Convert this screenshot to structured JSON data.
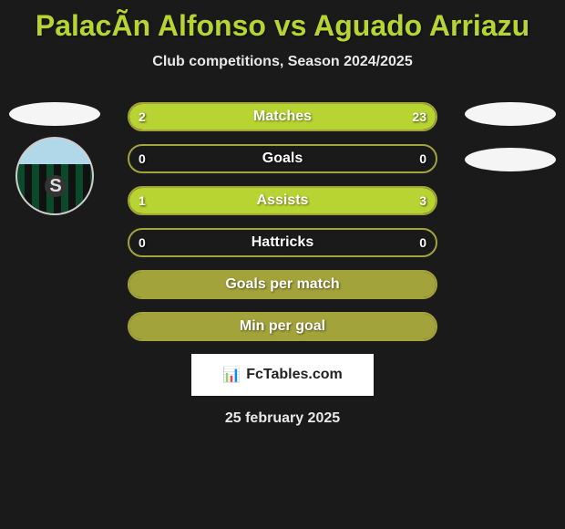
{
  "title": "PalacÃ­n Alfonso vs Aguado Arriazu",
  "subtitle": "Club competitions, Season 2024/2025",
  "colors": {
    "accent": "#b8d432",
    "accent_dark": "#a3a33b",
    "background": "#1a1a1a",
    "text_light": "#e8e8e8",
    "text_white": "#ffffff",
    "ellipse": "#f5f5f5",
    "footer_box_bg": "#ffffff",
    "footer_box_text": "#222222"
  },
  "stats": [
    {
      "label": "Matches",
      "left_val": "2",
      "right_val": "23",
      "left_pct": 8,
      "right_pct": 92,
      "show_vals": true
    },
    {
      "label": "Goals",
      "left_val": "0",
      "right_val": "0",
      "left_pct": 0,
      "right_pct": 0,
      "show_vals": true
    },
    {
      "label": "Assists",
      "left_val": "1",
      "right_val": "3",
      "left_pct": 25,
      "right_pct": 75,
      "show_vals": true
    },
    {
      "label": "Hattricks",
      "left_val": "0",
      "right_val": "0",
      "left_pct": 0,
      "right_pct": 0,
      "show_vals": true
    },
    {
      "label": "Goals per match",
      "left_val": "",
      "right_val": "",
      "left_pct": 0,
      "right_pct": 0,
      "show_vals": false,
      "full_fill": true
    },
    {
      "label": "Min per goal",
      "left_val": "",
      "right_val": "",
      "left_pct": 0,
      "right_pct": 0,
      "show_vals": false,
      "full_fill": true
    }
  ],
  "footer_brand": "FcTables.com",
  "footer_icon": "📊",
  "footer_date": "25 february 2025"
}
